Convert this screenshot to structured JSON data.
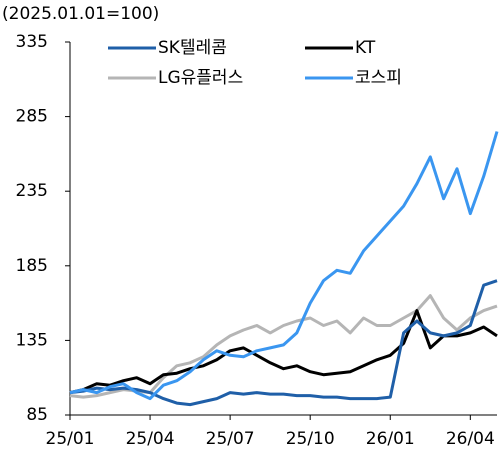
{
  "chart_data": {
    "type": "line",
    "subtitle": "(2025.01.01=100)",
    "x": [
      0,
      0.5,
      1,
      1.5,
      2,
      2.5,
      3,
      3.5,
      4,
      4.5,
      5,
      5.5,
      6,
      6.5,
      7,
      7.5,
      8,
      8.5,
      9,
      9.5,
      10,
      10.5,
      11,
      11.5,
      12,
      12.5,
      13,
      13.5,
      14,
      14.5,
      15,
      15.5,
      16
    ],
    "xlim": [
      0,
      16
    ],
    "xticks": [
      {
        "value": 0,
        "label": "25/01"
      },
      {
        "value": 3,
        "label": "25/04"
      },
      {
        "value": 6,
        "label": "25/07"
      },
      {
        "value": 9,
        "label": "25/10"
      },
      {
        "value": 12,
        "label": "26/01"
      },
      {
        "value": 15,
        "label": "26/04"
      }
    ],
    "ylim": [
      85,
      335
    ],
    "yticks": [
      85,
      135,
      185,
      235,
      285,
      335
    ],
    "series": [
      {
        "name": "SK텔레콤",
        "color": "#1f5fa8",
        "values": [
          100,
          101,
          103,
          102,
          103,
          102,
          100,
          96,
          93,
          92,
          94,
          96,
          100,
          99,
          100,
          99,
          99,
          98,
          98,
          97,
          97,
          96,
          96,
          96,
          97,
          140,
          148,
          140,
          138,
          140,
          145,
          172,
          175
        ]
      },
      {
        "name": "KT",
        "color": "#000000",
        "values": [
          100,
          102,
          106,
          105,
          108,
          110,
          106,
          112,
          113,
          116,
          118,
          122,
          128,
          130,
          125,
          120,
          116,
          118,
          114,
          112,
          113,
          114,
          118,
          122,
          125,
          133,
          155,
          130,
          138,
          138,
          140,
          144,
          138
        ]
      },
      {
        "name": "LG유플러스",
        "color": "#b5b5b5",
        "values": [
          98,
          97,
          98,
          100,
          102,
          101,
          100,
          110,
          118,
          120,
          124,
          132,
          138,
          142,
          145,
          140,
          145,
          148,
          150,
          145,
          148,
          140,
          150,
          145,
          145,
          150,
          155,
          165,
          150,
          142,
          150,
          155,
          158
        ]
      },
      {
        "name": "코스피",
        "color": "#3a96f0",
        "values": [
          100,
          102,
          100,
          104,
          106,
          100,
          96,
          105,
          108,
          114,
          122,
          128,
          125,
          124,
          128,
          130,
          132,
          140,
          160,
          175,
          182,
          180,
          195,
          205,
          215,
          225,
          240,
          258,
          230,
          250,
          220,
          245,
          275
        ]
      }
    ]
  }
}
